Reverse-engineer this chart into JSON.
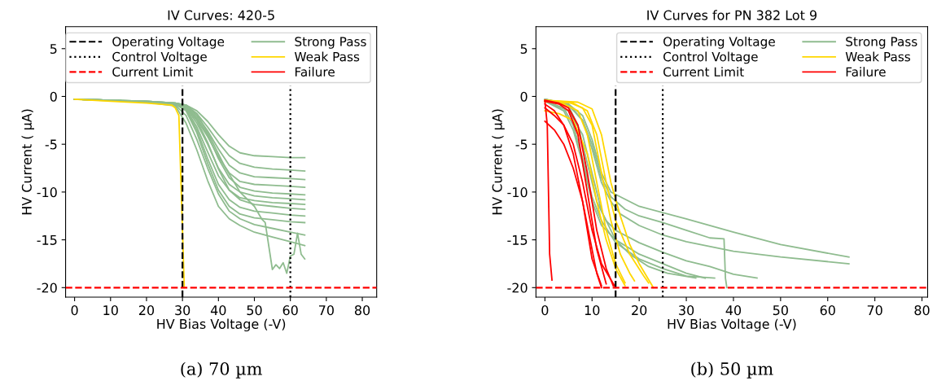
{
  "chart_data": [
    {
      "type": "line",
      "title": "IV Curves: 420-5",
      "xlabel": "HV Bias Voltage (-V)",
      "ylabel": "HV Current ( μA)",
      "xlim": [
        -2.5,
        84
      ],
      "ylim": [
        -21,
        7.3
      ],
      "xticks": [
        0,
        10,
        20,
        30,
        40,
        50,
        60,
        70,
        80
      ],
      "yticks": [
        -20,
        -15,
        -10,
        -5,
        0,
        5
      ],
      "grid": false,
      "legend": "top right",
      "marker": "none",
      "line_style": "solid",
      "annotations": [
        "(a) 70 µm"
      ],
      "ref_lines": [
        {
          "axis": "x",
          "value": 30,
          "label": "Operating Voltage",
          "color": "#000000",
          "line_style": "dashed"
        },
        {
          "axis": "x",
          "value": 60,
          "label": "Control Voltage",
          "color": "#000000",
          "line_style": "dotted"
        },
        {
          "axis": "y",
          "value": -20,
          "label": "Current Limit",
          "color": "#ff0000",
          "line_style": "dashed"
        }
      ],
      "series": [
        {
          "name": "Strong Pass",
          "color": "#8fbc8f",
          "x": [
            0,
            10,
            20,
            28,
            31,
            34,
            37,
            40,
            43,
            46,
            50,
            55,
            60,
            64
          ],
          "values": [
            -0.3,
            -0.4,
            -0.5,
            -0.7,
            -0.9,
            -1.5,
            -2.6,
            -4.0,
            -5.2,
            -5.9,
            -6.2,
            -6.3,
            -6.4,
            -6.4
          ]
        },
        {
          "color": "#8fbc8f",
          "x": [
            0,
            10,
            20,
            28,
            31,
            34,
            37,
            40,
            43,
            46,
            50,
            55,
            60,
            64
          ],
          "values": [
            -0.3,
            -0.4,
            -0.5,
            -0.7,
            -0.9,
            -1.8,
            -3.2,
            -4.8,
            -6.2,
            -7.0,
            -7.4,
            -7.6,
            -7.7,
            -7.8
          ]
        },
        {
          "color": "#8fbc8f",
          "x": [
            0,
            10,
            20,
            28,
            31,
            34,
            37,
            40,
            43,
            46,
            50,
            55,
            60,
            64
          ],
          "values": [
            -0.3,
            -0.4,
            -0.5,
            -0.7,
            -1.0,
            -2.0,
            -3.6,
            -5.5,
            -7.2,
            -8.0,
            -8.4,
            -8.5,
            -8.6,
            -8.7
          ]
        },
        {
          "color": "#8fbc8f",
          "x": [
            0,
            10,
            20,
            28,
            31,
            34,
            37,
            40,
            43,
            46,
            50,
            55,
            60,
            64
          ],
          "values": [
            -0.3,
            -0.4,
            -0.5,
            -0.7,
            -1.0,
            -2.4,
            -4.2,
            -6.3,
            -8.0,
            -8.9,
            -9.2,
            -9.3,
            -9.4,
            -9.5
          ]
        },
        {
          "color": "#8fbc8f",
          "x": [
            0,
            10,
            20,
            28,
            31,
            34,
            37,
            40,
            43,
            46,
            50,
            55,
            60,
            64
          ],
          "values": [
            -0.3,
            -0.4,
            -0.6,
            -0.8,
            -1.1,
            -2.2,
            -4.0,
            -6.5,
            -8.5,
            -9.5,
            -9.9,
            -10.1,
            -10.2,
            -10.3
          ]
        },
        {
          "color": "#8fbc8f",
          "x": [
            0,
            10,
            20,
            28,
            31,
            34,
            37,
            40,
            43,
            46,
            50,
            55,
            60,
            64
          ],
          "values": [
            -0.3,
            -0.4,
            -0.6,
            -0.8,
            -1.2,
            -2.8,
            -5.0,
            -7.5,
            -9.2,
            -10.0,
            -10.4,
            -10.6,
            -10.7,
            -10.8
          ]
        },
        {
          "color": "#8fbc8f",
          "x": [
            0,
            10,
            20,
            28,
            31,
            34,
            37,
            40,
            43,
            46,
            50,
            55,
            60,
            64
          ],
          "values": [
            -0.3,
            -0.4,
            -0.6,
            -0.8,
            -1.3,
            -3.2,
            -5.8,
            -8.3,
            -9.8,
            -10.6,
            -10.9,
            -11.1,
            -11.2,
            -11.3
          ]
        },
        {
          "color": "#8fbc8f",
          "x": [
            0,
            10,
            20,
            28,
            31,
            34,
            37,
            40,
            43,
            46,
            50,
            55,
            60,
            64
          ],
          "values": [
            -0.3,
            -0.4,
            -0.6,
            -0.8,
            -1.2,
            -2.5,
            -4.8,
            -7.6,
            -9.8,
            -10.8,
            -11.3,
            -11.5,
            -11.7,
            -11.8
          ]
        },
        {
          "color": "#8fbc8f",
          "x": [
            0,
            10,
            20,
            28,
            31,
            34,
            37,
            40,
            43,
            46,
            50,
            55,
            60,
            64
          ],
          "values": [
            -0.3,
            -0.4,
            -0.6,
            -0.8,
            -1.4,
            -3.5,
            -6.5,
            -9.2,
            -10.8,
            -11.6,
            -12.0,
            -12.2,
            -12.4,
            -12.5
          ]
        },
        {
          "color": "#8fbc8f",
          "x": [
            0,
            10,
            20,
            28,
            31,
            34,
            37,
            40,
            43,
            46,
            50,
            55,
            60,
            64
          ],
          "values": [
            -0.3,
            -0.4,
            -0.6,
            -0.8,
            -1.5,
            -3.8,
            -7.0,
            -9.8,
            -11.5,
            -12.3,
            -12.7,
            -12.9,
            -13.1,
            -13.2
          ]
        },
        {
          "color": "#8fbc8f",
          "x": [
            0,
            10,
            20,
            28,
            31,
            34,
            37,
            40,
            43,
            46,
            50,
            55,
            60,
            64
          ],
          "values": [
            -0.3,
            -0.4,
            -0.6,
            -0.9,
            -2.0,
            -4.5,
            -7.5,
            -10.2,
            -12.0,
            -12.8,
            -13.4,
            -13.8,
            -14.2,
            -14.5
          ]
        },
        {
          "color": "#8fbc8f",
          "x": [
            0,
            10,
            20,
            28,
            31,
            34,
            37,
            40,
            43,
            46,
            50,
            55,
            60,
            64
          ],
          "values": [
            -0.3,
            -0.4,
            -0.6,
            -1.0,
            -2.8,
            -5.6,
            -8.8,
            -11.5,
            -12.8,
            -13.5,
            -14.2,
            -14.7,
            -15.2,
            -15.6
          ]
        },
        {
          "color": "#8fbc8f",
          "x": [
            0,
            20,
            30,
            34,
            38,
            42,
            46,
            50,
            52,
            53,
            55,
            56,
            57,
            58,
            59,
            60,
            61,
            62,
            63,
            64
          ],
          "values": [
            -0.3,
            -0.6,
            -0.8,
            -1.8,
            -4.5,
            -7.5,
            -10.0,
            -11.5,
            -12.8,
            -13.2,
            -18.1,
            -17.6,
            -18.0,
            -17.4,
            -18.5,
            -16.7,
            -16.5,
            -14.3,
            -16.5,
            -17.0
          ]
        },
        {
          "name": "Weak Pass",
          "color": "#ffd700",
          "x": [
            0,
            10,
            20,
            27,
            28,
            29,
            30.5
          ],
          "values": [
            -0.3,
            -0.5,
            -0.7,
            -0.9,
            -1.2,
            -2.0,
            -20
          ]
        },
        {
          "name": "Failure",
          "color": "#ff0000"
        }
      ]
    },
    {
      "type": "line",
      "title": "IV Curves for PN 382 Lot 9",
      "xlabel": "HV Bias Voltage (-V)",
      "ylabel": "HV Current ( μA)",
      "xlim": [
        -1.9,
        81.2
      ],
      "ylim": [
        -21,
        7.3
      ],
      "xticks": [
        0,
        10,
        20,
        30,
        40,
        50,
        60,
        70,
        80
      ],
      "yticks": [
        -20,
        -15,
        -10,
        -5,
        0,
        5
      ],
      "grid": false,
      "legend": "top right",
      "marker": "none",
      "line_style": "solid",
      "annotations": [
        "(b) 50 µm"
      ],
      "ref_lines": [
        {
          "axis": "x",
          "value": 15,
          "label": "Operating Voltage",
          "color": "#000000",
          "line_style": "dashed"
        },
        {
          "axis": "x",
          "value": 25,
          "label": "Control Voltage",
          "color": "#000000",
          "line_style": "dotted"
        },
        {
          "axis": "y",
          "value": -20,
          "label": "Current Limit",
          "color": "#ff0000",
          "line_style": "dashed"
        }
      ],
      "series": [
        {
          "name": "Strong Pass",
          "color": "#8fbc8f",
          "x": [
            0,
            5,
            8,
            10,
            12,
            14,
            16,
            20,
            30,
            40,
            50,
            64.5
          ],
          "values": [
            -0.3,
            -0.8,
            -2,
            -4.5,
            -8,
            -10,
            -10.5,
            -11.5,
            -12.8,
            -14.2,
            -15.5,
            -16.8
          ]
        },
        {
          "color": "#8fbc8f",
          "x": [
            0,
            5,
            8,
            10,
            12,
            14,
            16,
            20,
            25,
            30,
            40,
            50,
            64.5
          ],
          "values": [
            -0.3,
            -0.9,
            -2.5,
            -5.5,
            -9,
            -11,
            -12.3,
            -13.5,
            -14.5,
            -15.2,
            -16.2,
            -16.8,
            -17.5
          ]
        },
        {
          "color": "#8fbc8f",
          "x": [
            0,
            5,
            8,
            10,
            12,
            14,
            17,
            20,
            25,
            30,
            35,
            38,
            38.3,
            38.6
          ],
          "values": [
            -0.3,
            -0.8,
            -2.5,
            -5,
            -8.5,
            -10.5,
            -11.8,
            -12.5,
            -13.2,
            -14,
            -14.8,
            -14.9,
            -19,
            -20
          ]
        },
        {
          "color": "#8fbc8f",
          "x": [
            0,
            5,
            7,
            9,
            11,
            13,
            15,
            20,
            25,
            30,
            35,
            40,
            45
          ],
          "values": [
            -0.4,
            -1,
            -3,
            -7,
            -11,
            -13,
            -14,
            -15.3,
            -16.3,
            -17.2,
            -17.8,
            -18.6,
            -19
          ]
        },
        {
          "color": "#8fbc8f",
          "x": [
            0,
            4,
            6,
            8,
            10,
            12,
            15,
            20,
            25,
            30,
            34
          ],
          "values": [
            -0.5,
            -1.5,
            -3.5,
            -7,
            -11,
            -13.5,
            -15,
            -16.5,
            -17.5,
            -18.5,
            -19
          ]
        },
        {
          "color": "#8fbc8f",
          "x": [
            0,
            4,
            6,
            8,
            10,
            12,
            15,
            20,
            25,
            30,
            36
          ],
          "values": [
            -0.5,
            -1.2,
            -3,
            -6.5,
            -10.5,
            -13,
            -15.3,
            -17,
            -18,
            -18.8,
            -19
          ]
        },
        {
          "color": "#8fbc8f",
          "x": [
            0,
            5,
            8,
            10,
            12,
            15,
            18,
            22,
            26,
            32
          ],
          "values": [
            -0.5,
            -1.5,
            -4,
            -8,
            -12,
            -15,
            -16.5,
            -17.8,
            -18.5,
            -19
          ]
        },
        {
          "name": "Weak Pass",
          "color": "#ffd700",
          "x": [
            0,
            4,
            7,
            9,
            11,
            13,
            15,
            17
          ],
          "values": [
            -0.5,
            -0.8,
            -1.5,
            -4,
            -9,
            -14,
            -17.5,
            -19.5
          ]
        },
        {
          "color": "#ffd700",
          "x": [
            0,
            5,
            8,
            10,
            12,
            14,
            16,
            18,
            19
          ],
          "values": [
            -0.4,
            -0.6,
            -1.2,
            -3,
            -8,
            -13,
            -16.5,
            -18.5,
            -19.3
          ]
        },
        {
          "color": "#ffd700",
          "x": [
            0,
            6,
            9,
            11,
            13,
            15,
            18,
            21,
            22
          ],
          "values": [
            -0.5,
            -0.7,
            -1.5,
            -4,
            -9,
            -13,
            -16.5,
            -18.8,
            -19.5
          ]
        },
        {
          "color": "#ffd700",
          "x": [
            0,
            7,
            10,
            12,
            14,
            16,
            18,
            20,
            23
          ],
          "values": [
            -0.4,
            -0.6,
            -1.3,
            -4,
            -9,
            -12.5,
            -15.5,
            -17.5,
            -20
          ]
        },
        {
          "color": "#ffd700",
          "x": [
            0,
            3,
            6,
            9,
            11,
            13,
            15,
            17
          ],
          "values": [
            -1.5,
            -1.8,
            -2.5,
            -6,
            -11,
            -15,
            -18,
            -19.8
          ]
        },
        {
          "name": "Failure",
          "color": "#ff0000",
          "x": [
            0,
            0.5,
            1,
            1.5
          ],
          "values": [
            -0.5,
            -3,
            -16.5,
            -19.2
          ]
        },
        {
          "color": "#ff0000",
          "x": [
            0,
            2,
            4,
            6,
            8,
            10,
            11,
            12
          ],
          "values": [
            -2.6,
            -3.5,
            -5,
            -7.5,
            -11,
            -16,
            -18.5,
            -20
          ]
        },
        {
          "color": "#ff0000",
          "x": [
            0,
            2,
            4,
            6,
            8,
            10,
            12
          ],
          "values": [
            -0.8,
            -1.5,
            -3,
            -6,
            -11,
            -17,
            -19.8
          ]
        },
        {
          "color": "#ff0000",
          "x": [
            0,
            3,
            5,
            7,
            9,
            11,
            13
          ],
          "values": [
            -0.5,
            -0.8,
            -1.5,
            -4,
            -10,
            -16,
            -19.6
          ]
        },
        {
          "color": "#ff0000",
          "x": [
            0,
            3,
            5,
            7,
            9,
            11,
            13,
            14.5
          ],
          "values": [
            -0.4,
            -0.7,
            -1.2,
            -3,
            -8,
            -14,
            -18,
            -19.8
          ]
        },
        {
          "color": "#ff0000",
          "x": [
            0,
            2,
            4,
            6,
            8,
            10,
            12,
            15
          ],
          "values": [
            -1.2,
            -2,
            -3,
            -5,
            -9,
            -14,
            -17.5,
            -20
          ]
        }
      ]
    }
  ]
}
